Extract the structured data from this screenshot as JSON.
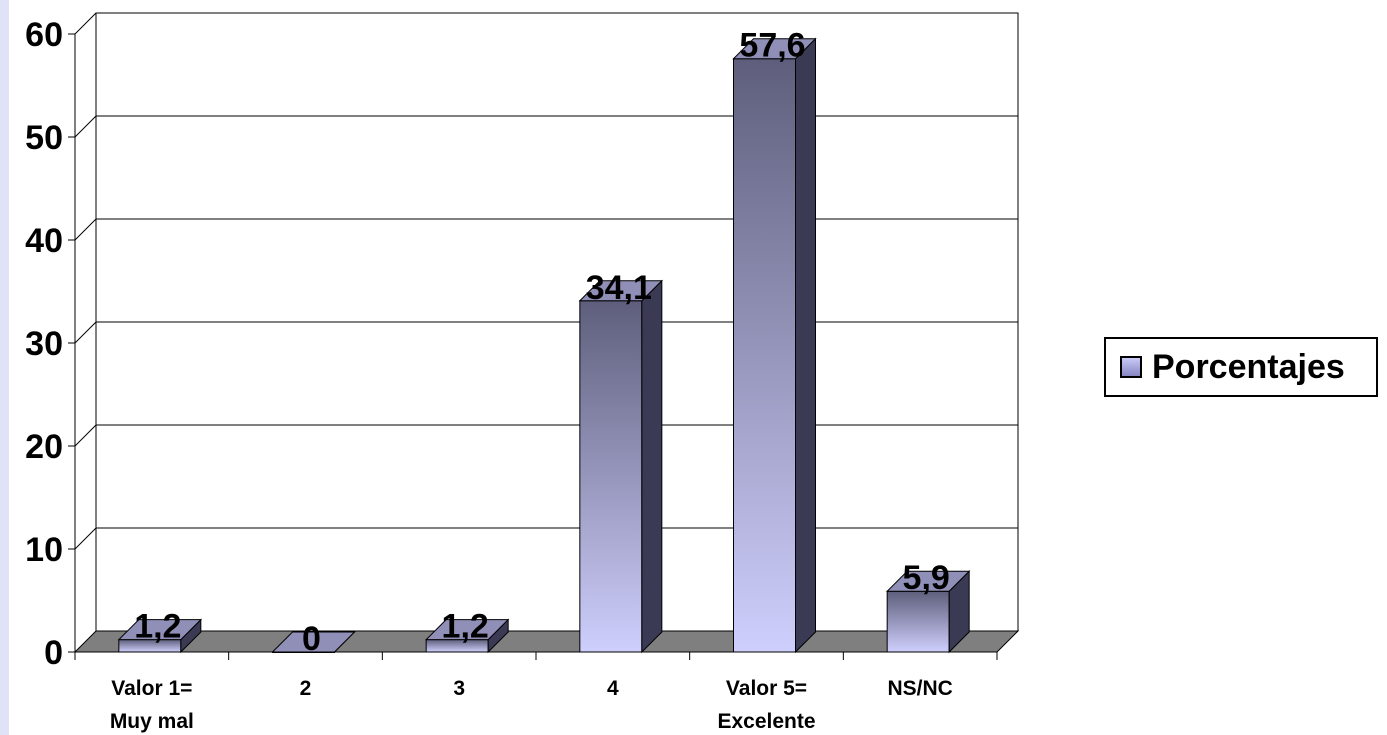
{
  "chart_data": {
    "type": "bar",
    "categories": [
      "Valor 1=\nMuy mal",
      "2",
      "3",
      "4",
      "Valor 5=\nExcelente",
      "NS/NC"
    ],
    "series": [
      {
        "name": "Porcentajes",
        "values": [
          1.2,
          0,
          1.2,
          34.1,
          57.6,
          5.9
        ]
      }
    ],
    "data_labels": [
      "1,2",
      "0",
      "1,2",
      "34,1",
      "57,6",
      "5,9"
    ],
    "y_ticks": [
      "0",
      "10",
      "20",
      "30",
      "40",
      "50",
      "60"
    ],
    "ylim": [
      0,
      60
    ],
    "title": "",
    "xlabel": "",
    "ylabel": "",
    "grid": true,
    "legend_position": "right",
    "style": "3d-column",
    "colors": {
      "bar_light": "#cfcffd",
      "bar_dark": "#5e5e7c",
      "side": "#3a3a55",
      "top": "#8f8fb8",
      "floor": "#7f7f7f"
    }
  }
}
